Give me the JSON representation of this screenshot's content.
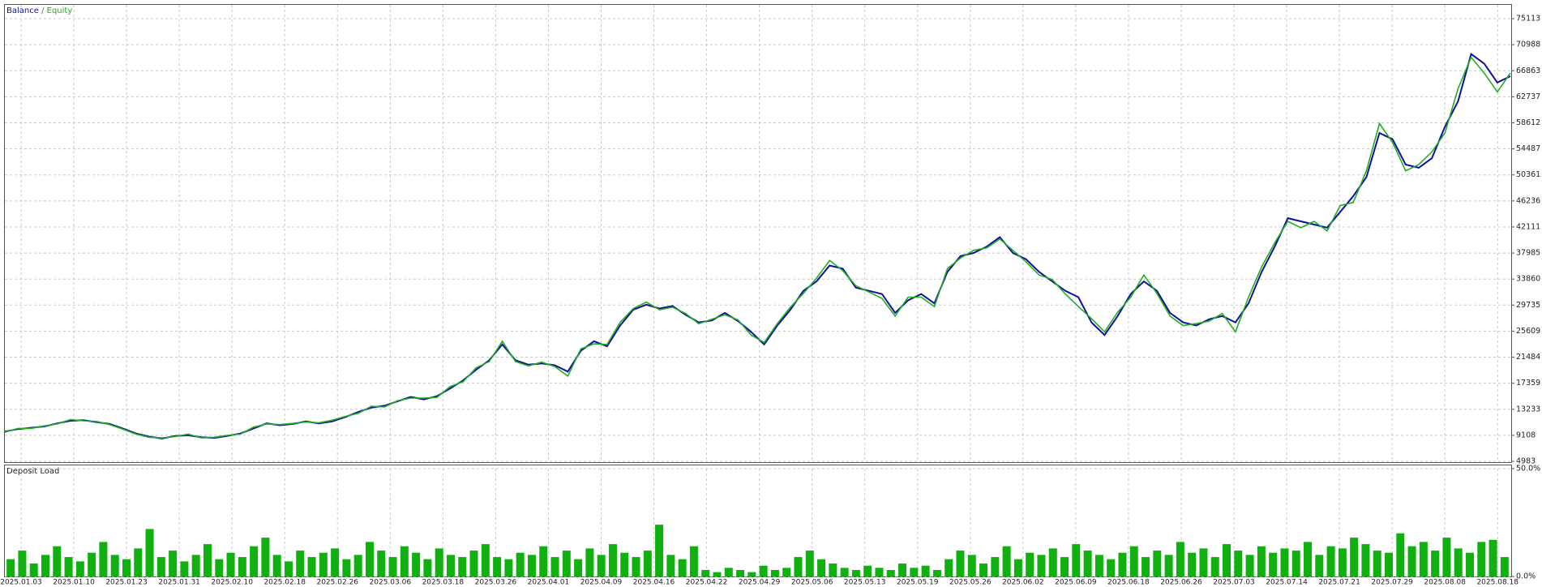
{
  "chart_data": [
    {
      "type": "line",
      "legend_separator": "/",
      "series": [
        {
          "name": "Balance",
          "color": "#10109c",
          "values": [
            9700,
            10100,
            10300,
            10500,
            11000,
            11400,
            11500,
            11200,
            10900,
            10200,
            9400,
            8900,
            8600,
            9000,
            9100,
            8800,
            8700,
            9000,
            9400,
            10200,
            11000,
            10700,
            10900,
            11300,
            11000,
            11300,
            12000,
            12800,
            13500,
            13800,
            14500,
            15200,
            14800,
            15300,
            16500,
            17800,
            19500,
            21000,
            23500,
            21000,
            20300,
            20500,
            20200,
            19200,
            22500,
            24000,
            23200,
            26500,
            29000,
            29800,
            29200,
            29600,
            28200,
            27000,
            27300,
            28500,
            27200,
            25500,
            23500,
            26500,
            29000,
            32000,
            33500,
            36000,
            35500,
            32500,
            32000,
            31500,
            28500,
            30500,
            31500,
            30000,
            35000,
            37500,
            38000,
            39000,
            40500,
            38000,
            37000,
            35000,
            33500,
            32000,
            31000,
            27000,
            25000,
            28000,
            31500,
            33500,
            32000,
            28500,
            27000,
            26500,
            27500,
            28000,
            27000,
            30000,
            35000,
            39000,
            43500,
            43000,
            42500,
            42000,
            44500,
            47000,
            50000,
            57000,
            56000,
            52000,
            51500,
            53000,
            58000,
            62000,
            69500,
            68000,
            65000,
            66000
          ]
        },
        {
          "name": "Equity",
          "color": "#1fae1f",
          "values": [
            9600,
            10200,
            10200,
            10600,
            10900,
            11600,
            11400,
            11300,
            10800,
            10100,
            9300,
            8800,
            8700,
            8900,
            9300,
            8700,
            8800,
            9100,
            9300,
            10400,
            10900,
            10800,
            11000,
            11200,
            11100,
            11500,
            12100,
            12600,
            13700,
            13600,
            14600,
            15000,
            15000,
            15100,
            16800,
            17600,
            19800,
            20800,
            24000,
            20800,
            20100,
            20700,
            20000,
            18500,
            22800,
            23600,
            23500,
            27000,
            29200,
            30200,
            29000,
            29400,
            28400,
            26800,
            27500,
            28200,
            27400,
            25000,
            23800,
            26800,
            29400,
            31600,
            34000,
            36800,
            35200,
            32800,
            31800,
            30800,
            28000,
            31000,
            31000,
            29500,
            35500,
            37200,
            38400,
            38800,
            40200,
            38400,
            36600,
            34500,
            33800,
            31500,
            29500,
            27600,
            25500,
            28600,
            31000,
            34500,
            31600,
            28000,
            26500,
            26800,
            27200,
            28400,
            25500,
            31000,
            35800,
            39600,
            43000,
            42000,
            43000,
            41500,
            45500,
            46000,
            51000,
            58500,
            55500,
            51000,
            52000,
            54000,
            57000,
            64000,
            69000,
            66500,
            63500,
            66500
          ]
        }
      ],
      "ylim": [
        4983,
        77300
      ],
      "yticks": [
        4983,
        9108,
        13233,
        17359,
        21484,
        25609,
        29735,
        33860,
        37985,
        42111,
        46236,
        50361,
        54487,
        58612,
        62737,
        66863,
        70988,
        75113
      ],
      "grid": true
    },
    {
      "type": "bar",
      "title": "Deposit Load",
      "color": "#0fb00f",
      "values": [
        8,
        12,
        6,
        10,
        14,
        9,
        7,
        11,
        16,
        10,
        8,
        13,
        22,
        9,
        12,
        7,
        10,
        15,
        8,
        11,
        9,
        14,
        18,
        10,
        7,
        12,
        9,
        11,
        13,
        8,
        10,
        16,
        12,
        9,
        14,
        11,
        8,
        13,
        10,
        9,
        12,
        15,
        9,
        8,
        11,
        10,
        14,
        9,
        12,
        8,
        13,
        10,
        15,
        11,
        9,
        12,
        24,
        10,
        8,
        14,
        3,
        2,
        4,
        3,
        2,
        5,
        3,
        4,
        9,
        12,
        8,
        6,
        4,
        3,
        5,
        4,
        3,
        6,
        4,
        5,
        3,
        8,
        12,
        10,
        6,
        9,
        14,
        8,
        11,
        10,
        13,
        9,
        15,
        12,
        10,
        8,
        11,
        14,
        9,
        12,
        10,
        16,
        11,
        13,
        9,
        15,
        12,
        10,
        14,
        11,
        13,
        12,
        16,
        10,
        14,
        13,
        18,
        15,
        12,
        11,
        20,
        14,
        16,
        12,
        18,
        13,
        11,
        16,
        17,
        9
      ],
      "ylim": [
        0,
        50
      ],
      "yticks": [
        {
          "value": 0,
          "label": "0.0%"
        },
        {
          "value": 50,
          "label": "50.0%"
        }
      ],
      "xticks": [
        "2025.01.03",
        "2025.01.10",
        "2025.01.23",
        "2025.01.31",
        "2025.02.10",
        "2025.02.18",
        "2025.02.26",
        "2025.03.06",
        "2025.03.18",
        "2025.03.26",
        "2025.04.01",
        "2025.04.09",
        "2025.04.16",
        "2025.04.22",
        "2025.04.29",
        "2025.05.06",
        "2025.05.13",
        "2025.05.19",
        "2025.05.26",
        "2025.06.02",
        "2025.06.09",
        "2025.06.18",
        "2025.06.26",
        "2025.07.03",
        "2025.07.14",
        "2025.07.21",
        "2025.07.29",
        "2025.08.08",
        "2025.08.18"
      ],
      "grid": true
    }
  ]
}
